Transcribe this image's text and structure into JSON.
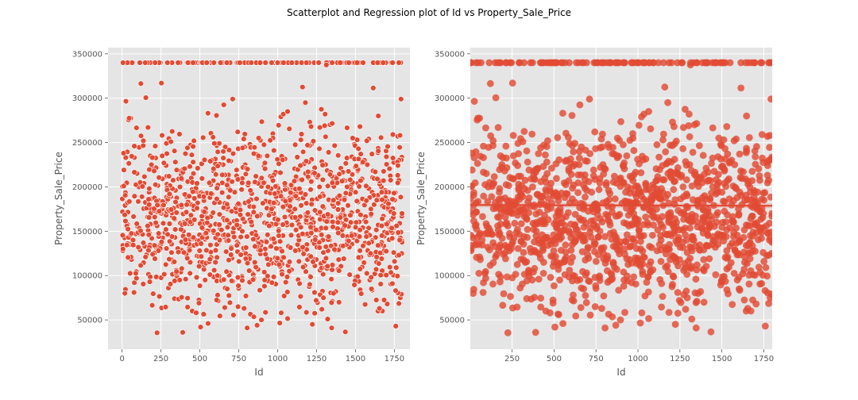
{
  "figure": {
    "suptitle": "Scatterplot and Regression plot of Id vs Property_Sale_Price"
  },
  "style": {
    "background": "#E5E5E5",
    "grid": "#FFFFFF",
    "marker": "#E24A33",
    "marker_edge": "#FFFFFF",
    "tick_color": "#555555"
  },
  "chart_data": [
    {
      "type": "scatter",
      "title": "",
      "xlabel": "Id",
      "ylabel": "Property_Sale_Price",
      "xlim": [
        -90,
        1850
      ],
      "ylim": [
        17000,
        357000
      ],
      "xticks": [
        0,
        250,
        500,
        750,
        1000,
        1250,
        1500,
        1750
      ],
      "xtick_labels": [
        "0",
        "250",
        "500",
        "750",
        "1000",
        "1250",
        "1500",
        "1750"
      ],
      "yticks": [
        50000,
        100000,
        150000,
        200000,
        250000,
        300000,
        350000
      ],
      "ytick_labels": [
        "50000",
        "100000",
        "150000",
        "200000",
        "250000",
        "300000",
        "350000"
      ],
      "grid": true,
      "n_points": 1460,
      "x_range": [
        1,
        1800
      ],
      "y_cap": 340000,
      "x": [
        1,
        30,
        60,
        95,
        130,
        165,
        200,
        240,
        280,
        320,
        360,
        400,
        440,
        480,
        520,
        560,
        600,
        640,
        680,
        720,
        760,
        800,
        840,
        880,
        920,
        960,
        1000,
        1040,
        1080,
        1120,
        1160,
        1200,
        1240,
        1280,
        1320,
        1360,
        1400,
        1440,
        1480,
        1520,
        1560,
        1600,
        1640,
        1680,
        1720,
        1760,
        1800
      ],
      "y": [
        181000,
        307000,
        82000,
        255000,
        150000,
        320000,
        120000,
        340000,
        138000,
        205000,
        168000,
        62000,
        250000,
        140000,
        118000,
        275000,
        160000,
        340000,
        100000,
        52000,
        190000,
        145000,
        235000,
        130000,
        35000,
        175000,
        150000,
        225000,
        86000,
        260000,
        140000,
        180000,
        340000,
        120000,
        55000,
        200000,
        165000,
        110000,
        245000,
        37000,
        130000,
        190000,
        64000,
        340000,
        150000,
        105000,
        175000
      ]
    },
    {
      "type": "scatter",
      "title": "",
      "xlabel": "Id",
      "ylabel": "Property_Sale_Price",
      "xlim": [
        1,
        1800
      ],
      "ylim": [
        17000,
        357000
      ],
      "xticks": [
        250,
        500,
        750,
        1000,
        1250,
        1500,
        1750
      ],
      "xtick_labels": [
        "250",
        "500",
        "750",
        "1000",
        "1250",
        "1500",
        "1750"
      ],
      "yticks": [
        50000,
        100000,
        150000,
        200000,
        250000,
        300000,
        350000
      ],
      "ytick_labels": [
        "50000",
        "100000",
        "150000",
        "200000",
        "250000",
        "300000",
        "350000"
      ],
      "grid": true,
      "regression": {
        "slope": -0.5,
        "intercept": 179600
      },
      "n_points": 1460,
      "x_range": [
        1,
        1800
      ],
      "y_cap": 340000
    }
  ]
}
